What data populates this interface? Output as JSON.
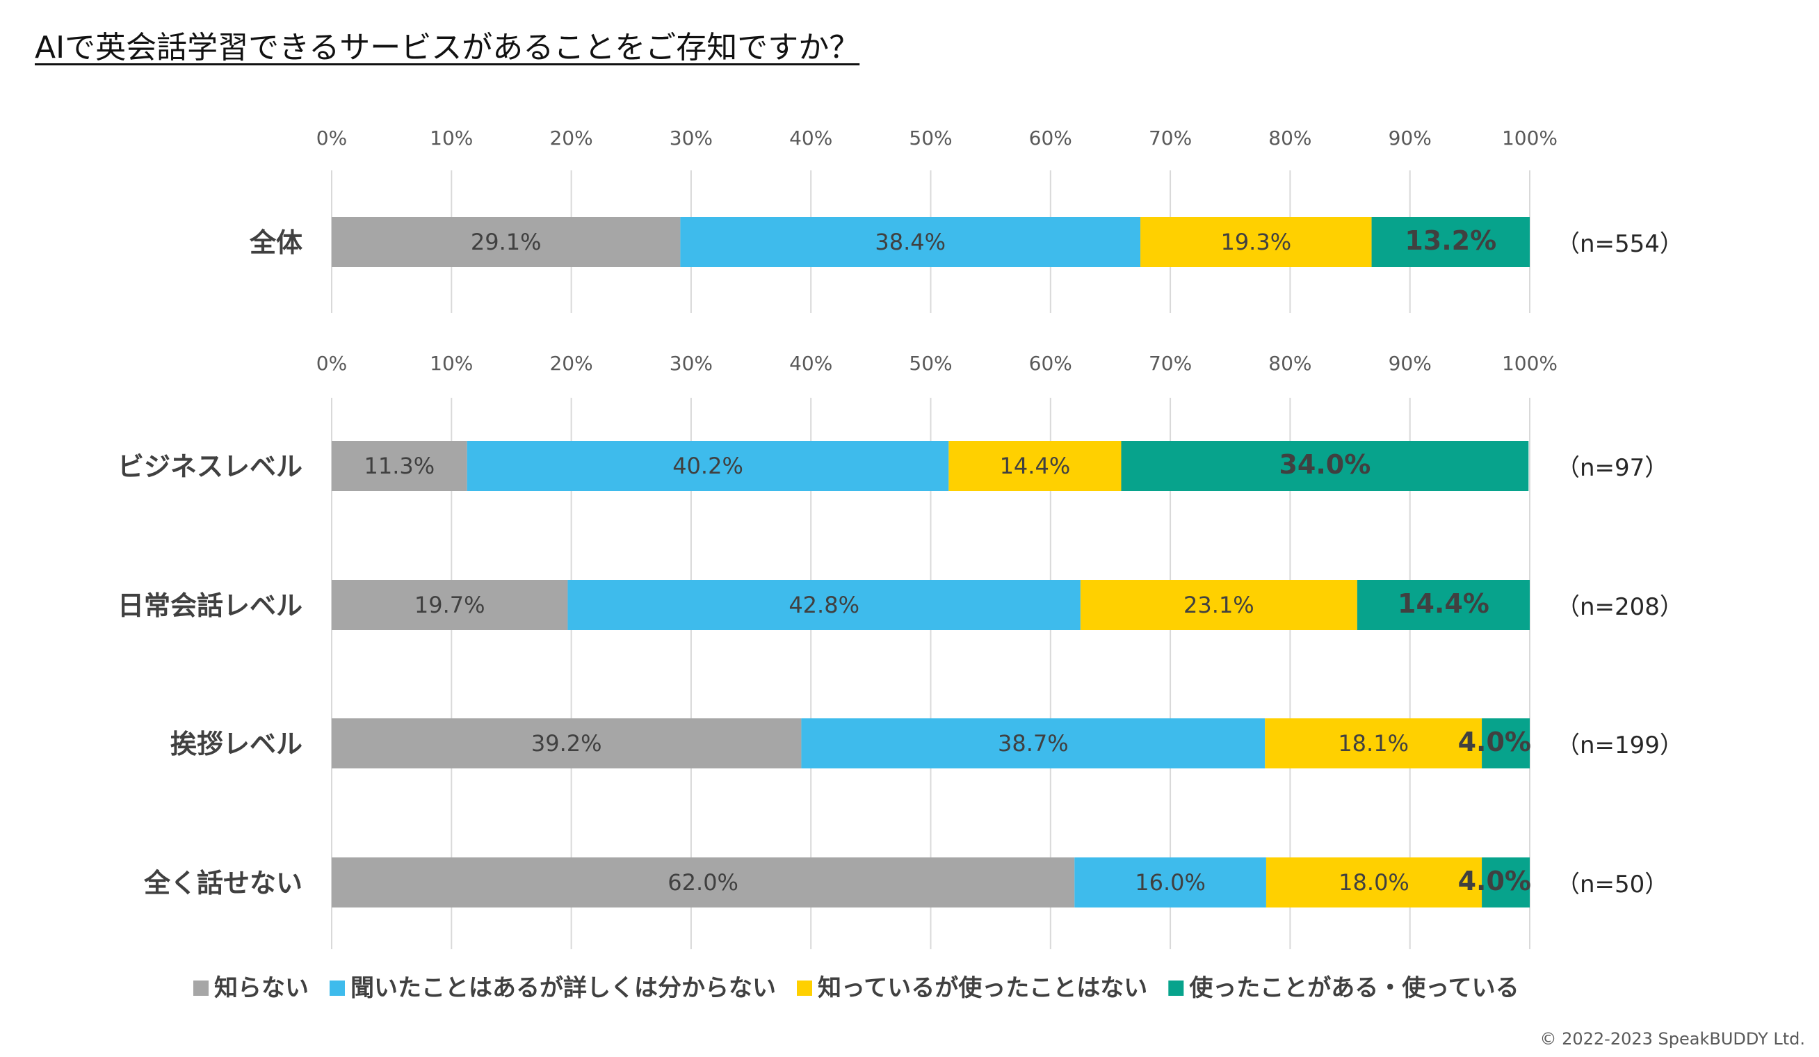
{
  "title": "AIで英会話学習できるサービスがあることをご存知ですか？",
  "copyright": "© 2022-2023 SpeakBUDDY Ltd.",
  "chart_data": [
    {
      "type": "bar",
      "orientation": "horizontal-stacked",
      "xlim": [
        0,
        100
      ],
      "xticks": [
        "0%",
        "10%",
        "20%",
        "30%",
        "40%",
        "50%",
        "60%",
        "70%",
        "80%",
        "90%",
        "100%"
      ],
      "categories": [
        "全体"
      ],
      "n_labels": [
        "（n=554）"
      ],
      "series": [
        {
          "name": "知らない",
          "values": [
            29.1
          ]
        },
        {
          "name": "聞いたことはあるが詳しくは分からない",
          "values": [
            38.4
          ]
        },
        {
          "name": "知っているが使ったことはない",
          "values": [
            19.3
          ]
        },
        {
          "name": "使ったことがある・使っている",
          "values": [
            13.2
          ]
        }
      ]
    },
    {
      "type": "bar",
      "orientation": "horizontal-stacked",
      "xlim": [
        0,
        100
      ],
      "xticks": [
        "0%",
        "10%",
        "20%",
        "30%",
        "40%",
        "50%",
        "60%",
        "70%",
        "80%",
        "90%",
        "100%"
      ],
      "categories": [
        "ビジネスレベル",
        "日常会話レベル",
        "挨拶レベル",
        "全く話せない"
      ],
      "n_labels": [
        "（n=97）",
        "（n=208）",
        "（n=199）",
        "（n=50）"
      ],
      "series": [
        {
          "name": "知らない",
          "values": [
            11.3,
            19.7,
            39.2,
            62.0
          ]
        },
        {
          "name": "聞いたことはあるが詳しくは分からない",
          "values": [
            40.2,
            42.8,
            38.7,
            16.0
          ]
        },
        {
          "name": "知っているが使ったことはない",
          "values": [
            14.4,
            23.1,
            18.1,
            18.0
          ]
        },
        {
          "name": "使ったことがある・使っている",
          "values": [
            34.0,
            14.4,
            4.0,
            4.0
          ]
        }
      ]
    }
  ],
  "legend": [
    {
      "label": "知らない",
      "color": "#a6a6a6"
    },
    {
      "label": "聞いたことはあるが詳しくは分からない",
      "color": "#3ebbec"
    },
    {
      "label": "知っているが使ったことはない",
      "color": "#ffd000"
    },
    {
      "label": "使ったことがある・使っている",
      "color": "#07a38c"
    }
  ],
  "colors": [
    "#a6a6a6",
    "#3ebbec",
    "#ffd000",
    "#07a38c"
  ]
}
